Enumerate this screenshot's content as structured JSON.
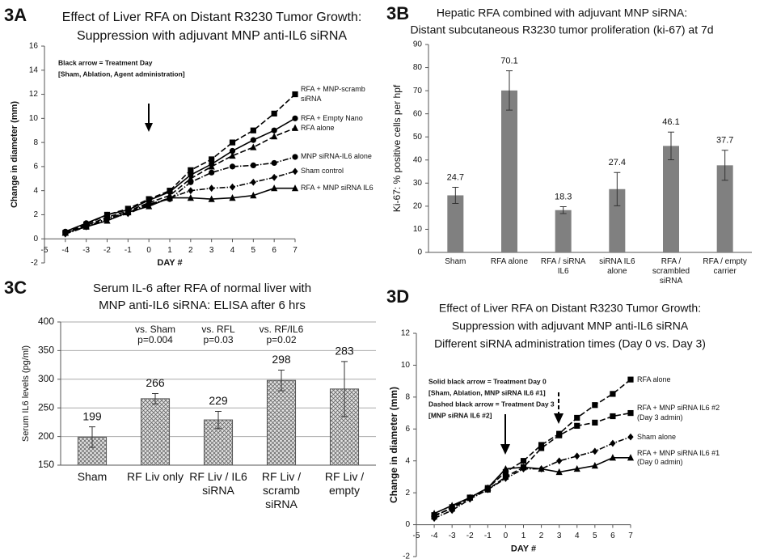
{
  "chart_data": [
    {
      "type": "line",
      "panel": "3A",
      "title": [
        "Effect of Liver RFA on Distant R3230 Tumor Growth:",
        "Suppression with adjuvant MNP anti-IL6 siRNA"
      ],
      "note": [
        "Black arrow = Treatment Day",
        "[Sham, Ablation, Agent administration]"
      ],
      "xlabel": "DAY #",
      "ylabel": "Change in diameter (mm)",
      "xlim": [
        -5,
        7
      ],
      "xticks": [
        -5,
        -4,
        -3,
        -2,
        -1,
        0,
        1,
        2,
        3,
        4,
        5,
        6,
        7
      ],
      "ylim": [
        -2,
        16
      ],
      "yticks": [
        -2,
        0,
        2,
        4,
        6,
        8,
        10,
        12,
        14,
        16
      ],
      "x": [
        -4,
        -3,
        -2,
        -1,
        0,
        1,
        2,
        3,
        4,
        5,
        6,
        7
      ],
      "series": [
        {
          "name": "RFA + MNP-scramb siRNA",
          "color": "#000000",
          "line_style": "dashed",
          "marker": "square",
          "values": [
            0.5,
            1.2,
            2.0,
            2.5,
            3.3,
            4.0,
            5.7,
            6.6,
            8.0,
            9.0,
            10.4,
            12.0
          ]
        },
        {
          "name": "RFA + Empty Nano",
          "color": "#000000",
          "line_style": "solid",
          "marker": "circle",
          "values": [
            0.6,
            1.3,
            2.0,
            2.4,
            3.2,
            3.9,
            5.3,
            6.2,
            7.3,
            8.2,
            9.0,
            10.0
          ]
        },
        {
          "name": "RFA alone",
          "color": "#000000",
          "line_style": "dashed",
          "marker": "triangle",
          "values": [
            0.5,
            1.1,
            1.8,
            2.3,
            3.0,
            3.6,
            5.0,
            6.0,
            6.9,
            7.6,
            8.5,
            9.2
          ]
        },
        {
          "name": "MNP siRNA-IL6 alone",
          "color": "#000000",
          "line_style": "dash-dot",
          "marker": "circle",
          "values": [
            0.5,
            1.0,
            1.7,
            2.2,
            2.9,
            3.3,
            4.7,
            5.5,
            6.0,
            6.1,
            6.3,
            6.8
          ]
        },
        {
          "name": "Sham control",
          "color": "#000000",
          "line_style": "dash-dot",
          "marker": "diamond",
          "values": [
            0.4,
            1.0,
            1.6,
            2.1,
            2.8,
            3.4,
            4.0,
            4.2,
            4.3,
            4.7,
            5.1,
            5.6
          ]
        },
        {
          "name": "RFA + MNP siRNA IL6",
          "color": "#000000",
          "line_style": "solid",
          "marker": "triangle",
          "values": [
            0.5,
            1.0,
            1.5,
            2.2,
            2.7,
            3.4,
            3.4,
            3.3,
            3.4,
            3.6,
            4.2,
            4.2
          ]
        }
      ]
    },
    {
      "type": "bar",
      "panel": "3B",
      "title": [
        "Hepatic RFA combined with adjuvant MNP siRNA:",
        "Distant subcutaneous R3230 tumor proliferation (ki-67) at 7d"
      ],
      "ylabel": "Ki-67: % positive cells per hpf",
      "categories": [
        "Sham",
        "RFA alone",
        "RFA / siRNA IL6",
        "siRNA IL6 alone",
        "RFA / scrambled siRNA",
        "RFA / empty carrier"
      ],
      "values": [
        24.7,
        70.1,
        18.3,
        27.4,
        46.1,
        37.7
      ],
      "errors": [
        3.5,
        8.5,
        1.5,
        7.2,
        6.0,
        6.5
      ],
      "color": "#808080",
      "ylim": [
        0,
        90
      ],
      "yticks": [
        0,
        10,
        20,
        30,
        40,
        50,
        60,
        70,
        80,
        90
      ],
      "grid": false
    },
    {
      "type": "bar",
      "panel": "3C",
      "title": [
        "Serum IL-6 after RFA of normal liver with",
        "MNP anti-IL6 siRNA: ELISA after 6 hrs"
      ],
      "ylabel": "Serum IL6 levels (pg/ml)",
      "categories": [
        "Sham",
        "RF Liv only",
        "RF Liv / IL6 siRNA",
        "RF Liv / scramb siRNA",
        "RF Liv / empty"
      ],
      "values": [
        199,
        266,
        229,
        298,
        283
      ],
      "errors": [
        18,
        9,
        15,
        18,
        48
      ],
      "comparisons": [
        null,
        [
          "vs. Sham",
          "p=0.004"
        ],
        [
          "vs. RFL",
          "p=0.03"
        ],
        [
          "vs. RF/IL6",
          "p=0.02"
        ],
        null
      ],
      "color": "#555555",
      "pattern": "crosshatch",
      "ylim": [
        150,
        400
      ],
      "yticks": [
        150,
        200,
        250,
        300,
        350,
        400
      ],
      "grid": true
    },
    {
      "type": "line",
      "panel": "3D",
      "title": [
        "Effect of Liver RFA on Distant R3230 Tumor Growth:",
        "Suppression with adjuvant MNP anti-IL6 siRNA",
        "Different siRNA administration times (Day 0 vs. Day 3)"
      ],
      "note": [
        "Solid black arrow = Treatment Day 0",
        "[Sham, Ablation, MNP siRNA IL6 #1]",
        "Dashed black arrow = Treatment Day 3",
        "[MNP siRNA IL6 #2]"
      ],
      "xlabel": "DAY #",
      "ylabel": "Change in diameter (mm)",
      "xlim": [
        -5,
        7
      ],
      "xticks": [
        -5,
        -4,
        -3,
        -2,
        -1,
        0,
        1,
        2,
        3,
        4,
        5,
        6,
        7
      ],
      "ylim": [
        -2,
        12
      ],
      "yticks": [
        -2,
        0,
        2,
        4,
        6,
        8,
        10,
        12
      ],
      "x": [
        -4,
        -3,
        -2,
        -1,
        0,
        1,
        2,
        3,
        4,
        5,
        6,
        7
      ],
      "series": [
        {
          "name": "RFA alone",
          "color": "#000000",
          "line_style": "dashed",
          "marker": "square",
          "values": [
            0.6,
            1.0,
            1.7,
            2.3,
            3.3,
            4.0,
            5.0,
            5.7,
            6.7,
            7.5,
            8.2,
            9.1
          ]
        },
        {
          "name": "RFA + MNP siRNA IL6 #2 (Day 3 admin)",
          "color": "#000000",
          "line_style": "dashed",
          "marker": "square",
          "values": [
            0.5,
            1.1,
            1.7,
            2.2,
            3.0,
            3.6,
            4.8,
            5.6,
            6.2,
            6.4,
            6.8,
            7.0
          ]
        },
        {
          "name": "Sham alone",
          "color": "#000000",
          "line_style": "dash-dot",
          "marker": "diamond",
          "values": [
            0.4,
            0.9,
            1.6,
            2.2,
            2.9,
            3.5,
            3.5,
            4.0,
            4.3,
            4.6,
            5.1,
            5.5
          ]
        },
        {
          "name": "RFA + MNP siRNA IL6 #1 (Day 0 admin)",
          "color": "#000000",
          "line_style": "solid",
          "marker": "triangle",
          "values": [
            0.7,
            1.2,
            1.7,
            2.3,
            3.5,
            3.6,
            3.5,
            3.3,
            3.5,
            3.7,
            4.2,
            4.2
          ]
        }
      ]
    }
  ]
}
